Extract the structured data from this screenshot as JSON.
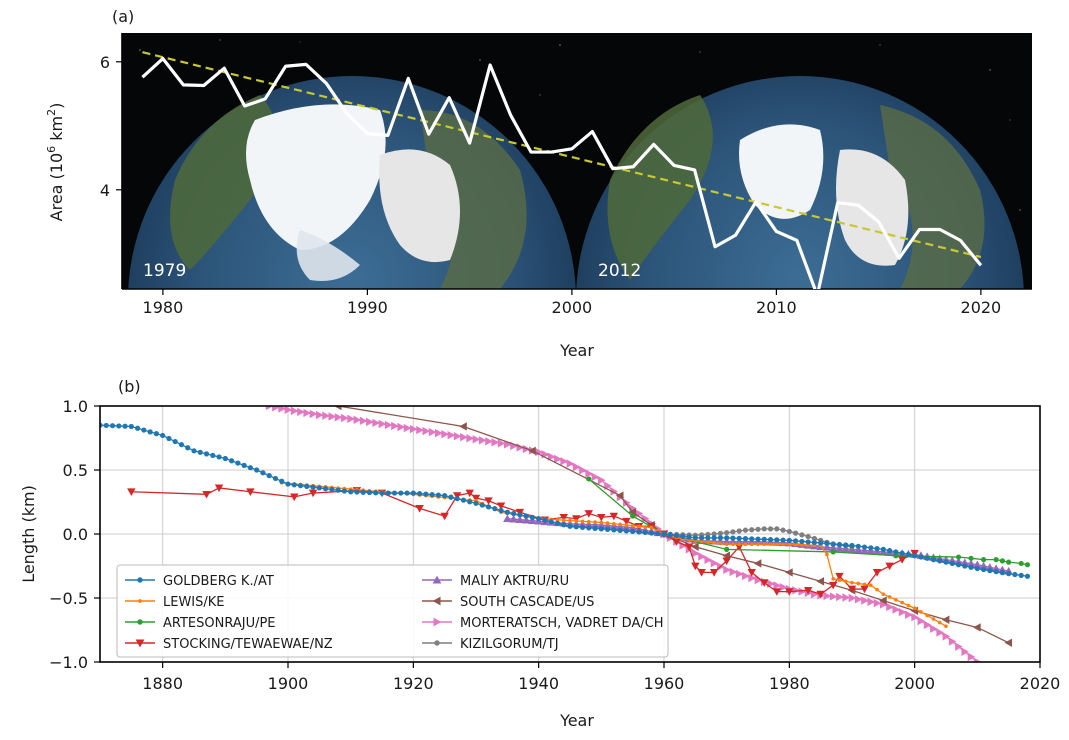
{
  "chart_data": [
    {
      "type": "line",
      "panel_label": "(a)",
      "xlabel": "Year",
      "ylabel": "Area (10^6 km^2)",
      "ylabel_parts": {
        "before": "Area (10",
        "exp1": "6",
        "mid": " km",
        "exp2": "2",
        "after": ")"
      },
      "xlim": [
        1978,
        2022.5
      ],
      "ylim": [
        2.45,
        6.45
      ],
      "xticks": [
        1980,
        1990,
        2000,
        2010,
        2020
      ],
      "yticks": [
        4,
        6
      ],
      "background": "photo of Arctic sea ice extent (two globes)",
      "image_labels": [
        "1979",
        "2012"
      ],
      "colors": {
        "ice_area": "#ffffff",
        "trend": "#c8c832"
      },
      "series": [
        {
          "role": "observed",
          "x": [
            1979,
            1980,
            1981,
            1982,
            1983,
            1984,
            1985,
            1986,
            1987,
            1988,
            1989,
            1990,
            1991,
            1992,
            1993,
            1994,
            1995,
            1996,
            1997,
            1998,
            1999,
            2000,
            2001,
            2002,
            2003,
            2004,
            2005,
            2006,
            2007,
            2008,
            2009,
            2010,
            2011,
            2012,
            2013,
            2014,
            2015,
            2016,
            2017,
            2018,
            2019,
            2020
          ],
          "y": [
            5.76,
            6.05,
            5.64,
            5.63,
            5.9,
            5.31,
            5.42,
            5.93,
            5.96,
            5.66,
            5.19,
            4.88,
            4.85,
            5.74,
            4.87,
            5.44,
            4.73,
            5.95,
            5.17,
            4.59,
            4.59,
            4.64,
            4.91,
            4.33,
            4.36,
            4.71,
            4.38,
            4.31,
            3.11,
            3.29,
            3.81,
            3.35,
            3.21,
            2.35,
            3.8,
            3.76,
            3.5,
            2.93,
            3.38,
            3.38,
            3.21,
            2.82
          ]
        },
        {
          "role": "trend",
          "x": [
            1979,
            2020
          ],
          "y": [
            6.15,
            2.95
          ]
        }
      ]
    },
    {
      "type": "line",
      "panel_label": "(b)",
      "xlabel": "Year",
      "ylabel": "Length (km)",
      "xlim": [
        1870,
        2020
      ],
      "ylim": [
        -1.0,
        1.0
      ],
      "xticks": [
        1880,
        1900,
        1920,
        1940,
        1960,
        1980,
        2000,
        2020
      ],
      "yticks": [
        -1.0,
        -0.5,
        0.0,
        0.5,
        1.0
      ],
      "ytick_labels": [
        "−1.0",
        "−0.5",
        "0.0",
        "0.5",
        "1.0"
      ],
      "grid": true,
      "legend_position": "lower-left",
      "series": [
        {
          "name": "GOLDBERG K./AT",
          "color": "#1f77b4",
          "marker": "circle",
          "step": 1,
          "x": [
            1870,
            1875,
            1880,
            1885,
            1890,
            1895,
            1900,
            1905,
            1910,
            1915,
            1920,
            1925,
            1930,
            1935,
            1940,
            1945,
            1950,
            1955,
            1960,
            1965,
            1970,
            1975,
            1980,
            1985,
            1990,
            1995,
            2000,
            2005,
            2010,
            2015,
            2018
          ],
          "y": [
            0.85,
            0.84,
            0.77,
            0.65,
            0.59,
            0.5,
            0.39,
            0.36,
            0.33,
            0.32,
            0.32,
            0.3,
            0.24,
            0.17,
            0.12,
            0.06,
            0.04,
            0.02,
            0.0,
            -0.03,
            -0.03,
            -0.04,
            -0.05,
            -0.07,
            -0.09,
            -0.12,
            -0.17,
            -0.22,
            -0.27,
            -0.31,
            -0.33
          ]
        },
        {
          "name": "LEWIS/KE",
          "color": "#ff7f0e",
          "marker": "circle-small",
          "step": 1,
          "x": [
            1899,
            1910,
            1920,
            1930,
            1934,
            1940,
            1950,
            1958,
            1960,
            1963,
            1970,
            1975,
            1980,
            1985,
            1986,
            1987,
            1990,
            1993,
            1995,
            2000,
            2005
          ],
          "y": [
            0.4,
            0.35,
            0.31,
            0.26,
            0.17,
            0.12,
            0.09,
            0.05,
            0.0,
            -0.04,
            -0.08,
            -0.08,
            -0.08,
            -0.09,
            -0.16,
            -0.35,
            -0.38,
            -0.4,
            -0.47,
            -0.58,
            -0.72
          ]
        },
        {
          "name": "ARTESONRAJU/PE",
          "color": "#2ca02c",
          "marker": "circle",
          "x": [
            1948,
            1955,
            1960,
            1970,
            1987,
            1997,
            2007,
            2009,
            2011,
            2013,
            2014,
            2015,
            2017,
            2018
          ],
          "y": [
            0.43,
            0.14,
            0.0,
            -0.12,
            -0.14,
            -0.17,
            -0.18,
            -0.19,
            -0.2,
            -0.2,
            -0.21,
            -0.22,
            -0.23,
            -0.24
          ]
        },
        {
          "name": "STOCKING/TEWAEWAE/NZ",
          "color": "#d62728",
          "marker": "triangle-down",
          "x": [
            1875,
            1887,
            1889,
            1894,
            1901,
            1904,
            1911,
            1915,
            1921,
            1925,
            1927,
            1929,
            1930,
            1932,
            1934,
            1937,
            1941,
            1944,
            1946,
            1948,
            1950,
            1952,
            1954,
            1956,
            1958,
            1960,
            1962,
            1964,
            1965,
            1966,
            1968,
            1970,
            1972,
            1974,
            1976,
            1978,
            1980,
            1983,
            1985,
            1987,
            1988,
            1990,
            1992,
            1994,
            1996,
            1998,
            2000
          ],
          "y": [
            0.33,
            0.31,
            0.36,
            0.33,
            0.29,
            0.32,
            0.34,
            0.32,
            0.2,
            0.14,
            0.3,
            0.32,
            0.28,
            0.26,
            0.22,
            0.17,
            0.11,
            0.13,
            0.12,
            0.16,
            0.13,
            0.14,
            0.1,
            0.06,
            0.06,
            0.0,
            -0.06,
            -0.1,
            -0.25,
            -0.3,
            -0.3,
            -0.21,
            -0.1,
            -0.3,
            -0.38,
            -0.45,
            -0.45,
            -0.44,
            -0.47,
            -0.4,
            -0.33,
            -0.43,
            -0.43,
            -0.3,
            -0.25,
            -0.2,
            -0.15
          ]
        },
        {
          "name": "MALIY AKTRU/RU",
          "color": "#9467bd",
          "marker": "triangle-up",
          "step": 1,
          "x": [
            1935,
            1940,
            1945,
            1950,
            1955,
            1960,
            1965,
            1970,
            1975,
            1980,
            1985,
            1990,
            1995,
            2000,
            2005,
            2010,
            2015
          ],
          "y": [
            0.12,
            0.1,
            0.08,
            0.07,
            0.05,
            0.0,
            -0.05,
            -0.06,
            -0.06,
            -0.07,
            -0.1,
            -0.12,
            -0.14,
            -0.16,
            -0.2,
            -0.24,
            -0.29
          ]
        },
        {
          "name": "SOUTH CASCADE/US",
          "color": "#8c564b",
          "marker": "triangle-left",
          "x": [
            1908,
            1928,
            1939,
            1953,
            1955,
            1958,
            1960,
            1965,
            1970,
            1975,
            1980,
            1985,
            1990,
            1995,
            2000,
            2005,
            2010,
            2015
          ],
          "y": [
            1.0,
            0.84,
            0.65,
            0.3,
            0.17,
            0.07,
            0.0,
            -0.1,
            -0.17,
            -0.23,
            -0.3,
            -0.37,
            -0.44,
            -0.52,
            -0.6,
            -0.67,
            -0.73,
            -0.85
          ]
        },
        {
          "name": "MORTERATSCH, VADRET DA/CH",
          "color": "#e377c2",
          "marker": "triangle-right",
          "step": 1,
          "x": [
            1897,
            1900,
            1905,
            1910,
            1915,
            1920,
            1925,
            1930,
            1935,
            1940,
            1945,
            1950,
            1955,
            1960,
            1965,
            1970,
            1975,
            1980,
            1985,
            1990,
            1995,
            2000,
            2005,
            2010
          ],
          "y": [
            1.0,
            0.97,
            0.93,
            0.9,
            0.86,
            0.82,
            0.78,
            0.74,
            0.7,
            0.64,
            0.55,
            0.42,
            0.2,
            0.0,
            -0.15,
            -0.28,
            -0.36,
            -0.43,
            -0.48,
            -0.5,
            -0.55,
            -0.65,
            -0.8,
            -1.0
          ]
        },
        {
          "name": "KIZILGORUM/TJ",
          "color": "#7f7f7f",
          "marker": "circle",
          "step": 1,
          "x": [
            1960,
            1965,
            1968,
            1970,
            1973,
            1976,
            1978,
            1980,
            1983,
            1985,
            1987,
            1990
          ],
          "y": [
            0.0,
            -0.01,
            0.0,
            0.01,
            0.03,
            0.04,
            0.04,
            0.02,
            -0.02,
            -0.05,
            -0.08,
            -0.1
          ]
        }
      ]
    }
  ]
}
